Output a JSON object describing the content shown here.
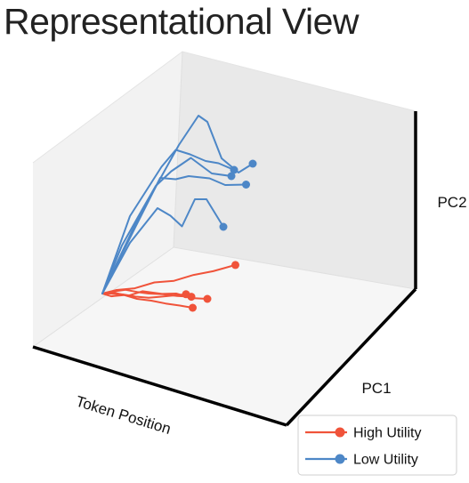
{
  "chart_data": {
    "type": "line",
    "title": "Representational View",
    "xlabel": "Token Position",
    "ylabel": "PC1",
    "zlabel": "PC2",
    "grid": false,
    "legend_position": "bottom-right",
    "series": [
      {
        "name": "High Utility",
        "color": "#f0533a",
        "lines": [
          [
            [
              0,
              0,
              0.5
            ],
            [
              1,
              0.9,
              0.56
            ],
            [
              2,
              1.4,
              0.38
            ],
            [
              3,
              2.0,
              0.52
            ],
            [
              4,
              2.2,
              0.32
            ],
            [
              5,
              2.8,
              0.3
            ],
            [
              6,
              3.3,
              0.08
            ],
            [
              7,
              3.8,
              0.0
            ]
          ],
          [
            [
              0,
              0,
              0.5
            ],
            [
              1,
              1.0,
              0.43
            ],
            [
              2,
              1.7,
              0.46
            ],
            [
              3,
              2.4,
              0.3
            ],
            [
              4,
              3.0,
              0.2
            ],
            [
              5,
              3.6,
              0.06
            ],
            [
              6,
              4.2,
              -0.05
            ],
            [
              7,
              4.9,
              -0.15
            ]
          ],
          [
            [
              0,
              0,
              0.5
            ],
            [
              1,
              0.8,
              0.58
            ],
            [
              2,
              1.6,
              0.64
            ],
            [
              3,
              2.4,
              0.56
            ],
            [
              4,
              3.2,
              0.5
            ],
            [
              5,
              3.8,
              0.44
            ],
            [
              6,
              4.4,
              0.34
            ],
            [
              7,
              5.0,
              0.28
            ]
          ],
          [
            [
              0,
              0,
              0.5
            ],
            [
              1,
              1.1,
              0.55
            ],
            [
              2,
              1.8,
              0.5
            ],
            [
              3,
              2.5,
              0.4
            ],
            [
              4,
              3.2,
              0.34
            ],
            [
              5,
              4.0,
              0.38
            ],
            [
              6,
              4.8,
              0.42
            ],
            [
              7,
              5.4,
              0.44
            ]
          ],
          [
            [
              0,
              0,
              0.5
            ],
            [
              1,
              0.6,
              0.6
            ],
            [
              2,
              0.9,
              0.58
            ],
            [
              3,
              1.1,
              0.7
            ],
            [
              4,
              1.3,
              0.66
            ],
            [
              5,
              1.5,
              0.78
            ],
            [
              6,
              1.7,
              0.82
            ],
            [
              7,
              1.7,
              0.92
            ]
          ]
        ]
      },
      {
        "name": "Low Utility",
        "color": "#4d87c7",
        "lines": [
          [
            [
              0,
              0,
              0.5
            ],
            [
              1,
              -1.0,
              3.0
            ],
            [
              2,
              -2.4,
              5.4
            ],
            [
              3,
              -2.2,
              6.4
            ],
            [
              4,
              -1.2,
              6.2
            ],
            [
              5,
              -0.6,
              4.8
            ],
            [
              6,
              -0.2,
              4.2
            ],
            [
              7,
              0.4,
              4.5
            ]
          ],
          [
            [
              0,
              0,
              0.5
            ],
            [
              1,
              -0.4,
              3.2
            ],
            [
              2,
              -1.1,
              4.8
            ],
            [
              3,
              -0.5,
              5.4
            ],
            [
              4,
              0.1,
              5.2
            ],
            [
              5,
              0.6,
              4.9
            ],
            [
              6,
              1.3,
              4.8
            ],
            [
              7,
              1.8,
              4.5
            ]
          ],
          [
            [
              0,
              0,
              0.5
            ],
            [
              1,
              -0.9,
              2.8
            ],
            [
              2,
              -1.0,
              4.4
            ],
            [
              3,
              -0.5,
              4.3
            ],
            [
              4,
              0.2,
              4.4
            ],
            [
              5,
              0.3,
              4.2
            ],
            [
              6,
              0.8,
              3.9
            ],
            [
              7,
              0.9,
              3.8
            ]
          ],
          [
            [
              0,
              0,
              0.5
            ],
            [
              1,
              0.2,
              2.2
            ],
            [
              2,
              0.4,
              3.4
            ],
            [
              3,
              1.0,
              4.3
            ],
            [
              4,
              1.5,
              4.8
            ],
            [
              5,
              1.7,
              5.2
            ],
            [
              6,
              1.8,
              4.5
            ],
            [
              7,
              2.0,
              4.3
            ]
          ],
          [
            [
              0,
              0,
              0.5
            ],
            [
              1,
              -0.4,
              2.2
            ],
            [
              2,
              -0.8,
              3.3
            ],
            [
              3,
              -0.1,
              3.0
            ],
            [
              4,
              0.7,
              2.6
            ],
            [
              5,
              1.4,
              3.6
            ],
            [
              6,
              2.2,
              3.6
            ],
            [
              7,
              2.6,
              2.5
            ]
          ]
        ]
      }
    ]
  }
}
